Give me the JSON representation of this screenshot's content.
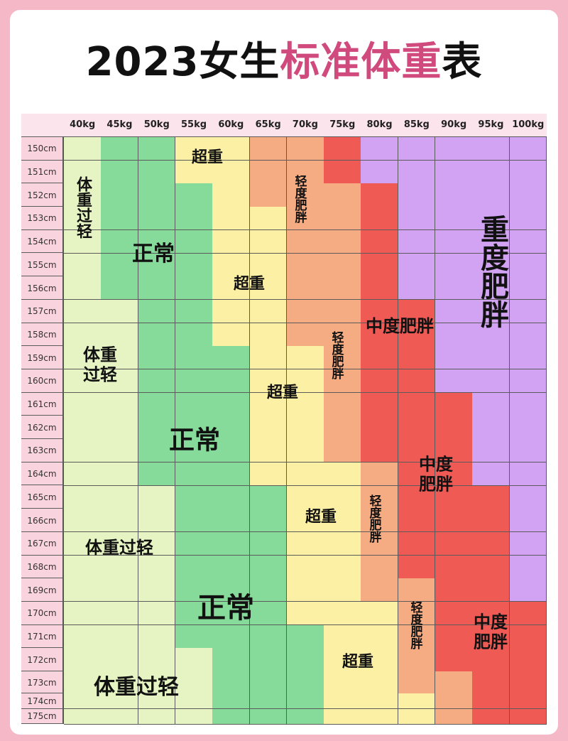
{
  "title": {
    "part1": "2023女生",
    "highlight": "标准体重",
    "part2": "表"
  },
  "colors": {
    "U": "#e5f4c2",
    "N": "#86da9a",
    "O": "#fbf0a4",
    "M": "#f6ac82",
    "R": "#ef5a55",
    "S": "#d2a3f2",
    "header_bg": "#fbe4eb",
    "row_label_bg": "#f9d3de",
    "title_highlight": "#d04a7e"
  },
  "chart_data": {
    "type": "heatmap",
    "title": "2023女生标准体重表",
    "x": [
      "40kg",
      "45kg",
      "50kg",
      "55kg",
      "60kg",
      "65kg",
      "70kg",
      "75kg",
      "80kg",
      "85kg",
      "90kg",
      "95kg",
      "100kg"
    ],
    "y": [
      "150cm",
      "151cm",
      "152cm",
      "153cm",
      "154cm",
      "155cm",
      "156cm",
      "157cm",
      "158cm",
      "159cm",
      "160cm",
      "161cm",
      "162cm",
      "163cm",
      "164cm",
      "165cm",
      "166cm",
      "167cm",
      "168cm",
      "169cm",
      "170cm",
      "171cm",
      "172cm",
      "173cm",
      "174cm",
      "175cm"
    ],
    "categories": {
      "U": "体重过轻",
      "N": "正常",
      "O": "超重",
      "M": "轻度肥胖",
      "R": "中度肥胖",
      "S": "重度肥胖"
    },
    "cells": [
      [
        "U",
        "N",
        "N",
        "O",
        "O",
        "M",
        "M",
        "R",
        "S",
        "S",
        "S",
        "S",
        "S"
      ],
      [
        "U",
        "N",
        "N",
        "O",
        "O",
        "M",
        "M",
        "R",
        "S",
        "S",
        "S",
        "S",
        "S"
      ],
      [
        "U",
        "N",
        "N",
        "N",
        "O",
        "M",
        "M",
        "M",
        "R",
        "S",
        "S",
        "S",
        "S"
      ],
      [
        "U",
        "N",
        "N",
        "N",
        "O",
        "O",
        "M",
        "M",
        "R",
        "S",
        "S",
        "S",
        "S"
      ],
      [
        "U",
        "N",
        "N",
        "N",
        "O",
        "O",
        "M",
        "M",
        "R",
        "S",
        "S",
        "S",
        "S"
      ],
      [
        "U",
        "N",
        "N",
        "N",
        "O",
        "O",
        "M",
        "M",
        "R",
        "S",
        "S",
        "S",
        "S"
      ],
      [
        "U",
        "N",
        "N",
        "N",
        "O",
        "O",
        "M",
        "M",
        "R",
        "S",
        "S",
        "S",
        "S"
      ],
      [
        "U",
        "U",
        "N",
        "N",
        "O",
        "O",
        "M",
        "M",
        "R",
        "R",
        "S",
        "S",
        "S"
      ],
      [
        "U",
        "U",
        "N",
        "N",
        "O",
        "O",
        "M",
        "M",
        "R",
        "R",
        "S",
        "S",
        "S"
      ],
      [
        "U",
        "U",
        "N",
        "N",
        "N",
        "O",
        "O",
        "M",
        "R",
        "R",
        "S",
        "S",
        "S"
      ],
      [
        "U",
        "U",
        "N",
        "N",
        "N",
        "O",
        "O",
        "M",
        "R",
        "R",
        "S",
        "S",
        "S"
      ],
      [
        "U",
        "U",
        "N",
        "N",
        "N",
        "O",
        "O",
        "M",
        "R",
        "R",
        "R",
        "S",
        "S"
      ],
      [
        "U",
        "U",
        "N",
        "N",
        "N",
        "O",
        "O",
        "M",
        "R",
        "R",
        "R",
        "S",
        "S"
      ],
      [
        "U",
        "U",
        "N",
        "N",
        "N",
        "O",
        "O",
        "M",
        "R",
        "R",
        "R",
        "S",
        "S"
      ],
      [
        "U",
        "U",
        "N",
        "N",
        "N",
        "O",
        "O",
        "O",
        "M",
        "R",
        "R",
        "S",
        "S"
      ],
      [
        "U",
        "U",
        "U",
        "N",
        "N",
        "N",
        "O",
        "O",
        "M",
        "R",
        "R",
        "R",
        "S"
      ],
      [
        "U",
        "U",
        "U",
        "N",
        "N",
        "N",
        "O",
        "O",
        "M",
        "R",
        "R",
        "R",
        "S"
      ],
      [
        "U",
        "U",
        "U",
        "N",
        "N",
        "N",
        "O",
        "O",
        "M",
        "R",
        "R",
        "R",
        "S"
      ],
      [
        "U",
        "U",
        "U",
        "N",
        "N",
        "N",
        "O",
        "O",
        "M",
        "R",
        "R",
        "R",
        "S"
      ],
      [
        "U",
        "U",
        "U",
        "N",
        "N",
        "N",
        "O",
        "O",
        "M",
        "M",
        "R",
        "R",
        "S"
      ],
      [
        "U",
        "U",
        "U",
        "N",
        "N",
        "N",
        "O",
        "O",
        "O",
        "M",
        "R",
        "R",
        "R"
      ],
      [
        "U",
        "U",
        "U",
        "N",
        "N",
        "N",
        "N",
        "O",
        "O",
        "M",
        "R",
        "R",
        "R"
      ],
      [
        "U",
        "U",
        "U",
        "U",
        "N",
        "N",
        "N",
        "O",
        "O",
        "M",
        "R",
        "R",
        "R"
      ],
      [
        "U",
        "U",
        "U",
        "U",
        "N",
        "N",
        "N",
        "O",
        "O",
        "M",
        "M",
        "R",
        "R"
      ],
      [
        "U",
        "U",
        "U",
        "U",
        "N",
        "N",
        "N",
        "O",
        "O",
        "O",
        "M",
        "R",
        "R"
      ],
      [
        "U",
        "U",
        "U",
        "U",
        "N",
        "N",
        "N",
        "O",
        "O",
        "O",
        "M",
        "R",
        "R"
      ]
    ],
    "annotations": [
      "体重过轻",
      "超重",
      "正常",
      "轻度肥胖",
      "重度肥胖",
      "超重",
      "中度肥胖",
      "体重\n过轻",
      "轻度肥胖",
      "超重",
      "正常",
      "中度\n肥胖",
      "轻度肥胖",
      "超重",
      "体重过轻",
      "正常",
      "轻度肥胖",
      "中度\n肥胖",
      "超重",
      "体重过轻"
    ]
  }
}
